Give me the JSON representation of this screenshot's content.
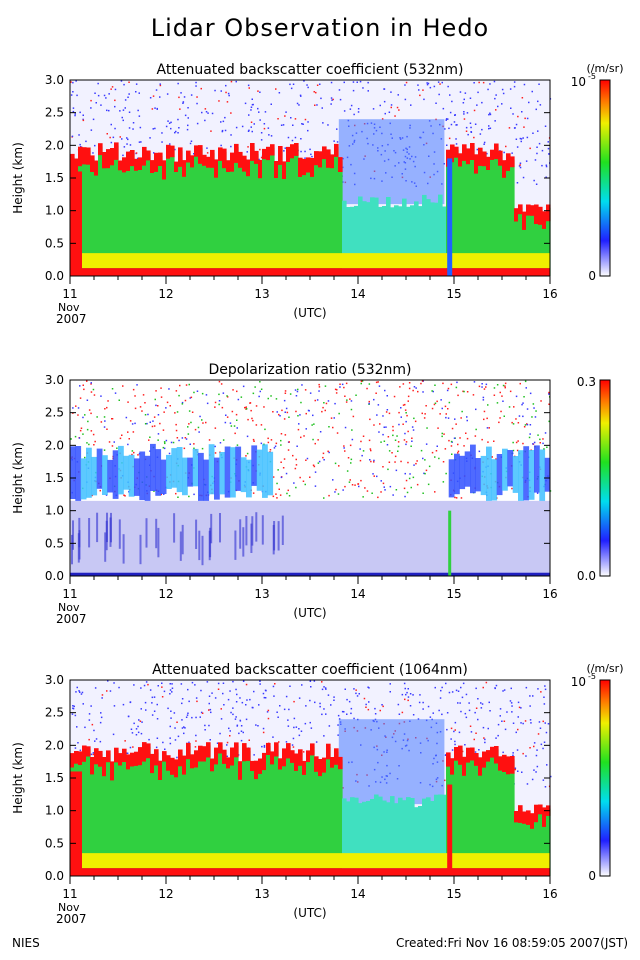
{
  "page": {
    "title": "Lidar Observation in Hedo",
    "footer_left": "NIES",
    "footer_right": "Created:Fri Nov 16 08:59:05 2007(JST)"
  },
  "chart_data": [
    {
      "type": "heatmap",
      "title": "Attenuated backscatter coefficient (532nm)",
      "ylabel": "Height (km)",
      "xlabel": "(UTC)",
      "x_ticks": [
        "11",
        "12",
        "13",
        "14",
        "15",
        "16"
      ],
      "x_sub_label": [
        "Nov",
        "2007"
      ],
      "y_ticks": [
        "0.0",
        "0.5",
        "1.0",
        "1.5",
        "2.0",
        "2.5",
        "3.0"
      ],
      "xlim": [
        11,
        16
      ],
      "ylim": [
        0,
        3
      ],
      "colorbar": {
        "unit": "(/m/sr)",
        "max_label": "10",
        "max_exp": "-5",
        "min_label": "0"
      }
    },
    {
      "type": "heatmap",
      "title": "Depolarization ratio (532nm)",
      "ylabel": "Height (km)",
      "xlabel": "(UTC)",
      "x_ticks": [
        "11",
        "12",
        "13",
        "14",
        "15",
        "16"
      ],
      "x_sub_label": [
        "Nov",
        "2007"
      ],
      "y_ticks": [
        "0.0",
        "0.5",
        "1.0",
        "1.5",
        "2.0",
        "2.5",
        "3.0"
      ],
      "xlim": [
        11,
        16
      ],
      "ylim": [
        0,
        3
      ],
      "colorbar": {
        "unit": "",
        "max_label": "0.3",
        "max_exp": "",
        "min_label": "0.0"
      }
    },
    {
      "type": "heatmap",
      "title": "Attenuated backscatter coefficient (1064nm)",
      "ylabel": "Height (km)",
      "xlabel": "(UTC)",
      "x_ticks": [
        "11",
        "12",
        "13",
        "14",
        "15",
        "16"
      ],
      "x_sub_label": [
        "Nov",
        "2007"
      ],
      "y_ticks": [
        "0.0",
        "0.5",
        "1.0",
        "1.5",
        "2.0",
        "2.5",
        "3.0"
      ],
      "xlim": [
        11,
        16
      ],
      "ylim": [
        0,
        3
      ],
      "colorbar": {
        "unit": "(/m/sr)",
        "max_label": "10",
        "max_exp": "-5",
        "min_label": "0"
      }
    }
  ]
}
